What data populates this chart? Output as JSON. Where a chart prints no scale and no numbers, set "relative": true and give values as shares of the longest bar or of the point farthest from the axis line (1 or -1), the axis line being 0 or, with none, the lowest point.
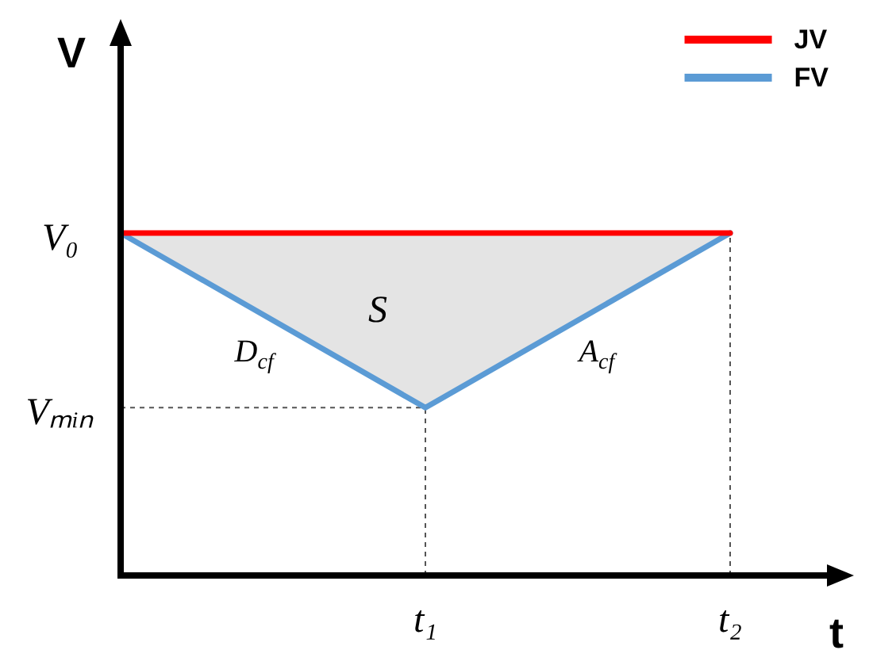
{
  "chart_data": {
    "type": "line",
    "xlabel": "t",
    "ylabel": "V",
    "relative": true,
    "categories": [
      null,
      "t₁",
      "t₂"
    ],
    "series": [
      {
        "name": "JV",
        "color": "#ff0000",
        "values": [
          1,
          1,
          1
        ],
        "lower": [
          1,
          0.49,
          1
        ],
        "upper": [
          1,
          1,
          1
        ]
      },
      {
        "name": "FV",
        "color": "#5b9bd5",
        "values": [
          1,
          0.49,
          1
        ]
      }
    ],
    "ref_lines": [
      {
        "axis": "y",
        "value": 0.49,
        "label": "Vₘᵢₙ"
      },
      {
        "axis": "x",
        "value": "t₁"
      },
      {
        "axis": "x",
        "value": "t₂"
      }
    ],
    "annotations": [
      "V₀",
      "S",
      "D$_{cf}$",
      "A$_{cf}$"
    ],
    "legend": "top right"
  }
}
